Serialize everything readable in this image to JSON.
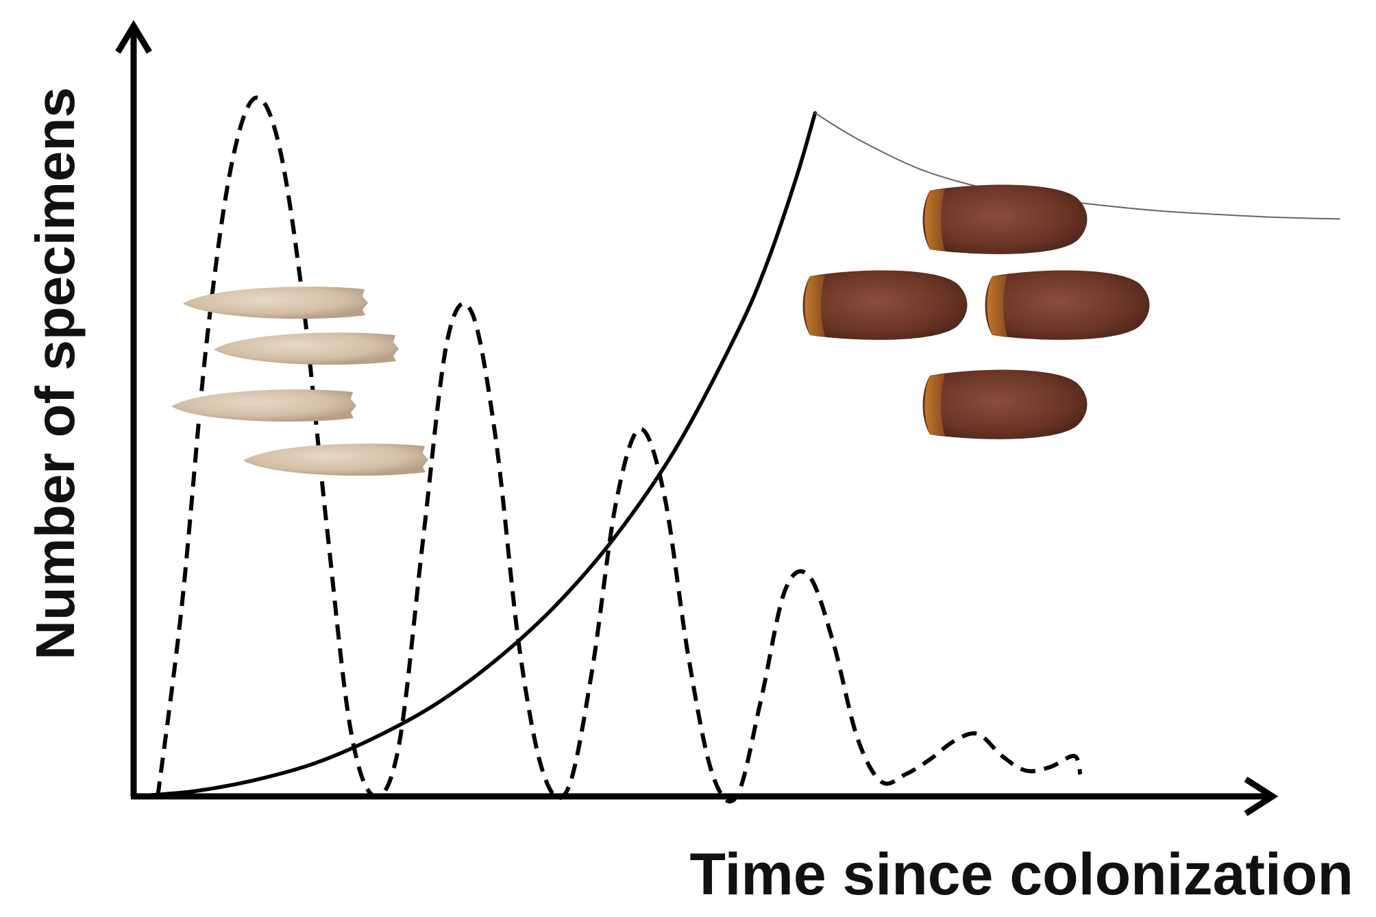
{
  "chart_data": {
    "type": "line",
    "title": "",
    "xlabel": "Time since colonization",
    "ylabel": "Number of specimens",
    "xlim": [
      0,
      10
    ],
    "ylim": [
      0,
      10
    ],
    "grid": false,
    "legend": "none",
    "axis_color": "#000000",
    "series": [
      {
        "style": "solid-thick",
        "color": "#000000",
        "x": [
          0.0,
          0.5,
          1.0,
          1.5,
          2.0,
          2.5,
          3.0,
          3.5,
          4.0,
          4.5,
          5.0,
          5.25,
          5.5,
          5.65
        ],
        "y": [
          0.0,
          0.07,
          0.22,
          0.45,
          0.8,
          1.25,
          1.85,
          2.6,
          3.55,
          4.75,
          6.3,
          7.25,
          8.45,
          9.3
        ]
      },
      {
        "style": "solid-thin",
        "color": "#666666",
        "x": [
          5.65,
          6.0,
          6.5,
          7.0,
          7.5,
          8.0,
          8.5,
          9.0,
          9.5,
          10.0
        ],
        "y": [
          9.3,
          8.95,
          8.55,
          8.3,
          8.15,
          8.05,
          7.97,
          7.92,
          7.88,
          7.86
        ]
      },
      {
        "style": "dashed",
        "color": "#000000",
        "x": [
          0.2,
          0.4,
          0.6,
          0.8,
          1.0,
          1.2,
          1.4,
          1.6,
          1.8,
          2.0,
          2.2,
          2.4,
          2.6,
          2.8,
          3.0,
          3.2,
          3.4,
          3.6,
          3.8,
          4.0,
          4.2,
          4.4,
          4.6,
          4.8,
          5.0,
          5.2,
          5.4,
          5.6,
          5.8,
          6.0,
          6.2,
          6.4,
          6.6,
          6.8,
          7.0,
          7.2,
          7.4,
          7.6,
          7.8,
          8.0,
          8.2,
          8.4,
          8.6,
          8.8,
          9.0,
          9.2,
          8.0
        ],
        "y": [
          0.0,
          2.6,
          6.1,
          8.5,
          9.5,
          8.9,
          6.8,
          3.7,
          0.9,
          0.0,
          0.7,
          3.5,
          6.2,
          6.6,
          4.9,
          2.0,
          0.3,
          0.1,
          1.7,
          4.0,
          5.0,
          4.1,
          1.9,
          0.3,
          0.0,
          1.3,
          2.8,
          3.0,
          2.1,
          0.8,
          0.2,
          0.3,
          0.5,
          0.75,
          0.85,
          0.55,
          0.35,
          0.4,
          0.55,
          0.6,
          0.45,
          0.35,
          0.3,
          0.3,
          0.3,
          0.3,
          0.3
        ]
      }
    ]
  }
}
